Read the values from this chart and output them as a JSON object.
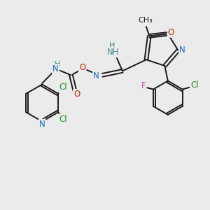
{
  "background_color": "#ebebeb",
  "bond_color": "#1a1a1a",
  "colors": {
    "N": "#1a6bbf",
    "O": "#cc2200",
    "Cl": "#228b22",
    "F": "#cc44aa",
    "H": "#4a8a8a",
    "C": "#1a1a1a"
  },
  "figsize": [
    3.0,
    3.0
  ],
  "dpi": 100
}
